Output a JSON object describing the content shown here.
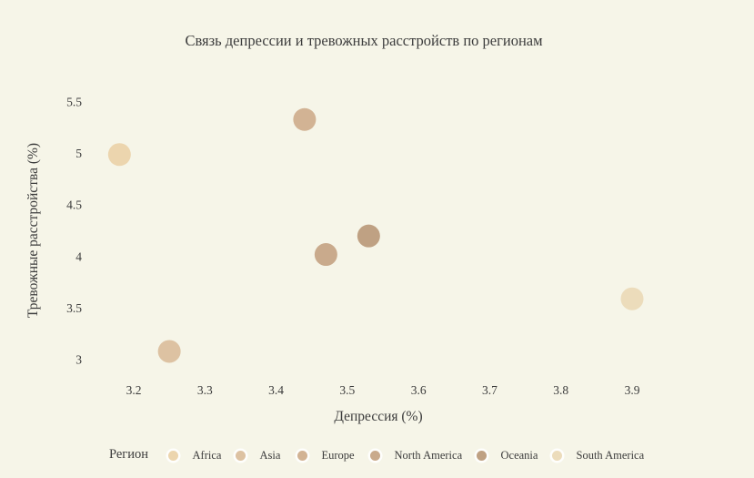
{
  "title": "Связь депрессии и тревожных расстройств по регионам",
  "colors": {
    "background": "#f6f5e8",
    "text": "#3c3c3c"
  },
  "chart_data": {
    "type": "scatter",
    "title": "Связь депрессии и тревожных расстройств по регионам",
    "xlabel": "Депрессия (%)",
    "ylabel": "Тревожные расстройства (%)",
    "legend_title": "Регион",
    "legend_position": "bottom",
    "grid": false,
    "axis_lines": false,
    "xlim": [
      3.15,
      3.97
    ],
    "ylim": [
      2.72,
      5.78
    ],
    "x_ticks": [
      "3.2",
      "3.3",
      "3.4",
      "3.5",
      "3.6",
      "3.7",
      "3.8",
      "3.9"
    ],
    "y_ticks": [
      "3",
      "3.5",
      "4",
      "4.5",
      "5",
      "5.5"
    ],
    "marker_radius": 12.5,
    "series": [
      {
        "name": "Africa",
        "color": "#ecd5ae",
        "x": 3.18,
        "y": 4.99
      },
      {
        "name": "Asia",
        "color": "#ddc2a2",
        "x": 3.25,
        "y": 3.08
      },
      {
        "name": "Europe",
        "color": "#d2b394",
        "x": 3.44,
        "y": 5.33
      },
      {
        "name": "North America",
        "color": "#c9aa8c",
        "x": 3.47,
        "y": 4.02
      },
      {
        "name": "Oceania",
        "color": "#bfa183",
        "x": 3.53,
        "y": 4.2
      },
      {
        "name": "South America",
        "color": "#ecdcbb",
        "x": 3.9,
        "y": 3.59
      }
    ]
  }
}
